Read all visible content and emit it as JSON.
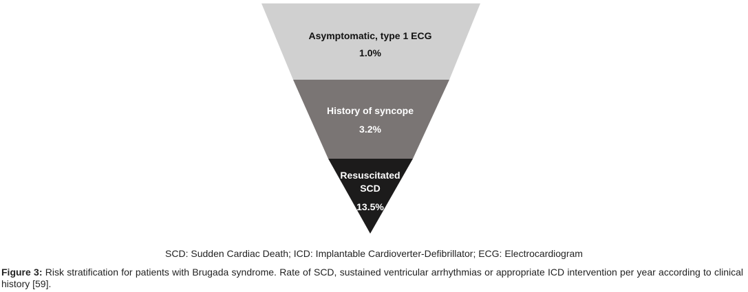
{
  "diagram": {
    "segments": [
      {
        "label_lines": [
          "Asymptomatic, type 1 ECG"
        ],
        "value": "1.0%",
        "fill": "#d0d0d0",
        "text_color": "#111111"
      },
      {
        "label_lines": [
          "History of syncope"
        ],
        "value": "3.2%",
        "fill": "#7a7574",
        "text_color": "#ffffff"
      },
      {
        "label_lines": [
          "Resuscitated",
          "SCD"
        ],
        "value": "13.5%",
        "fill": "#1c1b1b",
        "text_color": "#ffffff"
      }
    ]
  },
  "abbreviations": "SCD: Sudden Cardiac Death; ICD: Implantable Cardioverter-Defibrillator; ECG: Electrocardiogram",
  "caption": {
    "label": "Figure 3:",
    "text": " Risk stratification for patients with Brugada syndrome. Rate of SCD, sustained ventricular arrhythmias or appropriate ICD intervention per year according to clinical history [59]."
  }
}
